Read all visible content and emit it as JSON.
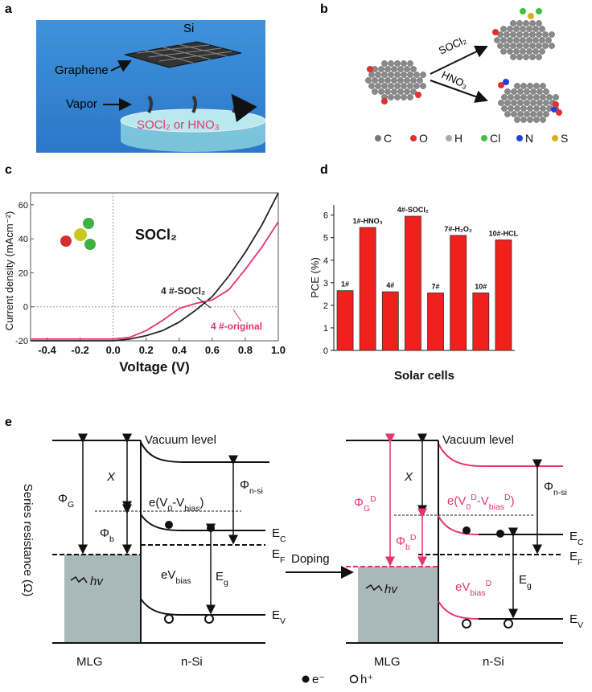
{
  "panel_labels": [
    "a",
    "b",
    "c",
    "d",
    "e"
  ],
  "panel_a": {
    "si": "Si",
    "graphene": "Graphene",
    "vapor": "Vapor",
    "reagent": "SOCl₂ or HNO₃"
  },
  "panel_b": {
    "reagent_1": "SOCl₂",
    "reagent_2": "HNO₃",
    "legend": [
      "C",
      "O",
      "H",
      "Cl",
      "N",
      "S"
    ]
  },
  "chart_data": [
    {
      "type": "line",
      "annotation": "SOCl₂",
      "xlabel": "Voltage (V)",
      "ylabel": "Current density (mAcm⁻²)",
      "x": [
        -0.5,
        -0.4,
        -0.3,
        -0.2,
        -0.1,
        0,
        0.1,
        0.2,
        0.3,
        0.4,
        0.5,
        0.6,
        0.7,
        0.8,
        0.9,
        1.0
      ],
      "series": [
        {
          "name": "4 #-SOCl₂",
          "color": "#222222",
          "values": [
            -20,
            -20,
            -20,
            -20,
            -20,
            -20,
            -19,
            -17,
            -14,
            -9,
            -2,
            6,
            18,
            32,
            48,
            67
          ]
        },
        {
          "name": "4 #-original",
          "color": "#e8336b",
          "values": [
            -19,
            -19,
            -19,
            -19,
            -19,
            -19,
            -18,
            -14,
            -8,
            -1,
            2,
            4,
            10,
            22,
            35,
            50
          ]
        }
      ],
      "xlim": [
        -0.5,
        1.0
      ],
      "xticks": [
        -0.4,
        -0.2,
        {
          "value": 0,
          "label": "0.0"
        },
        0.2,
        0.4,
        0.6,
        0.8,
        {
          "value": 1,
          "label": "1.0"
        }
      ],
      "ylim": [
        -20,
        67
      ],
      "yticks": [
        -20,
        0,
        20,
        40,
        60
      ]
    },
    {
      "type": "bar",
      "xlabel": "Solar cells",
      "ylabel": "PCE (%)",
      "color": "#f0201c",
      "categories": [
        "1#",
        "1#-HNO₃",
        "4#",
        "4#-SOCl₂",
        "7#",
        "7#-H₂O₂",
        "10#",
        "10#-HCL"
      ],
      "values": [
        2.65,
        5.45,
        2.6,
        5.95,
        2.55,
        5.1,
        2.55,
        4.9
      ],
      "ylim": [
        0,
        6.45
      ],
      "yticks": [
        0,
        1,
        2,
        3,
        4,
        5,
        6
      ]
    }
  ],
  "panel_e": {
    "ylabel": "Series resistance (Ω)",
    "doping": "Doping",
    "legend": [
      "e⁻",
      "h⁺"
    ],
    "left": {
      "vacuum": "Vacuum level",
      "phi_g": [
        "Φ",
        "G"
      ],
      "chi": "X",
      "e_v": [
        "e(V",
        "0",
        "-V",
        "bias",
        ")"
      ],
      "phi_nsi": [
        "Φ",
        "n-si"
      ],
      "phi_b": [
        "Φ",
        "b"
      ],
      "ec": [
        "E",
        "C"
      ],
      "ef": [
        "E",
        "F"
      ],
      "ev_bias": [
        "eV",
        "bias"
      ],
      "eg": [
        "E",
        "g"
      ],
      "hv": "hv",
      "ev": [
        "E",
        "V"
      ],
      "mlg": "MLG",
      "nsi": "n-Si"
    },
    "right": {
      "vacuum": "Vacuum level",
      "phi_g": [
        "Φ",
        "G",
        "D"
      ],
      "chi": "X",
      "e_v": [
        "e(V",
        "0",
        "D",
        "-V",
        "bias",
        "D",
        ")"
      ],
      "phi_nsi": [
        "Φ",
        "n-si"
      ],
      "phi_b": [
        "Φ",
        "b",
        "D"
      ],
      "ec": [
        "E",
        "C"
      ],
      "ef": [
        "E",
        "F"
      ],
      "ev_bias": [
        "eV",
        "bias",
        "D"
      ],
      "eg": [
        "E",
        "g"
      ],
      "hv": "hv",
      "ev": [
        "E",
        "V"
      ],
      "mlg": "MLG",
      "nsi": "n-Si"
    }
  }
}
